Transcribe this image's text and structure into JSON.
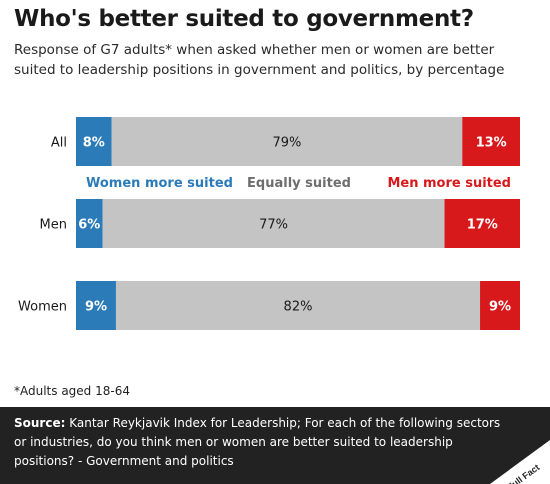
{
  "title": "Who's better suited to government?",
  "subtitle": "Response of G7 adults* when asked whether men or women are better suited to leadership positions in government and politics, by percentage",
  "footnote": "*Adults aged 18-64",
  "source": {
    "label": "Source:",
    "text": " Kantar Reykjavik Index for Leadership; For each of the following sectors or industries, do you think men or women are better suited to leadership positions? - Government and politics"
  },
  "logo_text": "Full Fact",
  "colors": {
    "women": "#2b7bb9",
    "equal": "#c4c4c4",
    "men": "#d7191c",
    "source_bg": "#222222"
  },
  "chart_data": {
    "type": "bar",
    "orientation": "horizontal",
    "stacked": true,
    "categories": [
      "All",
      "Men",
      "Women"
    ],
    "series": [
      {
        "name": "Women more suited",
        "values": [
          8,
          6,
          9
        ],
        "labels": [
          "8%",
          "6%",
          "9%"
        ]
      },
      {
        "name": "Equally suited",
        "values": [
          79,
          77,
          82
        ],
        "labels": [
          "79%",
          "77%",
          "82%"
        ]
      },
      {
        "name": "Men more suited",
        "values": [
          13,
          17,
          9
        ],
        "labels": [
          "13%",
          "17%",
          "9%"
        ]
      }
    ],
    "xlim": [
      0,
      100
    ],
    "legend_placement": "between first and second bar"
  }
}
